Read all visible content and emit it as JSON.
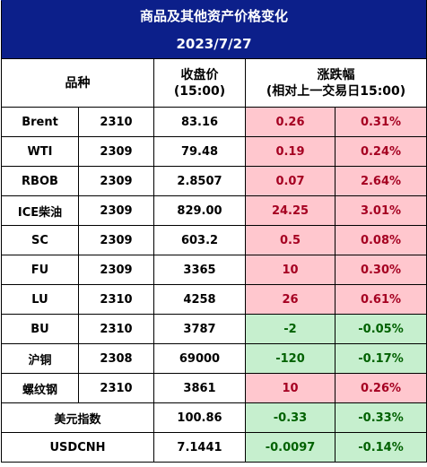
{
  "title": "商品及其他资产价格变化",
  "date": "2023/7/27",
  "headers": {
    "variety": "品种",
    "close_price_line1": "收盘价",
    "close_price_line2": "(15:00)",
    "change_line1": "涨跌幅",
    "change_line2": "(相对上一交易日15:00)"
  },
  "rows": [
    {
      "name": "Brent",
      "contract": "2310",
      "price": "83.16",
      "change": "0.26",
      "pct": "0.31%",
      "direction": "up"
    },
    {
      "name": "WTI",
      "contract": "2309",
      "price": "79.48",
      "change": "0.19",
      "pct": "0.24%",
      "direction": "up"
    },
    {
      "name": "RBOB",
      "contract": "2309",
      "price": "2.8507",
      "change": "0.07",
      "pct": "2.64%",
      "direction": "up"
    },
    {
      "name": "ICE柴油",
      "contract": "2309",
      "price": "829.00",
      "change": "24.25",
      "pct": "3.01%",
      "direction": "up"
    },
    {
      "name": "SC",
      "contract": "2309",
      "price": "603.2",
      "change": "0.5",
      "pct": "0.08%",
      "direction": "up"
    },
    {
      "name": "FU",
      "contract": "2309",
      "price": "3365",
      "change": "10",
      "pct": "0.30%",
      "direction": "up"
    },
    {
      "name": "LU",
      "contract": "2310",
      "price": "4258",
      "change": "26",
      "pct": "0.61%",
      "direction": "up"
    },
    {
      "name": "BU",
      "contract": "2310",
      "price": "3787",
      "change": "-2",
      "pct": "-0.05%",
      "direction": "down"
    },
    {
      "name": "沪铜",
      "contract": "2308",
      "price": "69000",
      "change": "-120",
      "pct": "-0.17%",
      "direction": "down"
    },
    {
      "name": "螺纹钢",
      "contract": "2310",
      "price": "3861",
      "change": "10",
      "pct": "0.26%",
      "direction": "up"
    },
    {
      "name": "美元指数",
      "contract": "",
      "price": "100.86",
      "change": "-0.33",
      "pct": "-0.33%",
      "direction": "down"
    },
    {
      "name": "USDCNH",
      "contract": "",
      "price": "7.1441",
      "change": "-0.0097",
      "pct": "-0.14%",
      "direction": "down"
    }
  ],
  "colors": {
    "title_background": "#0c1f8a",
    "up_background": "#ffc7ce",
    "up_text": "#a50021",
    "down_background": "#c6efce",
    "down_text": "#006100"
  }
}
